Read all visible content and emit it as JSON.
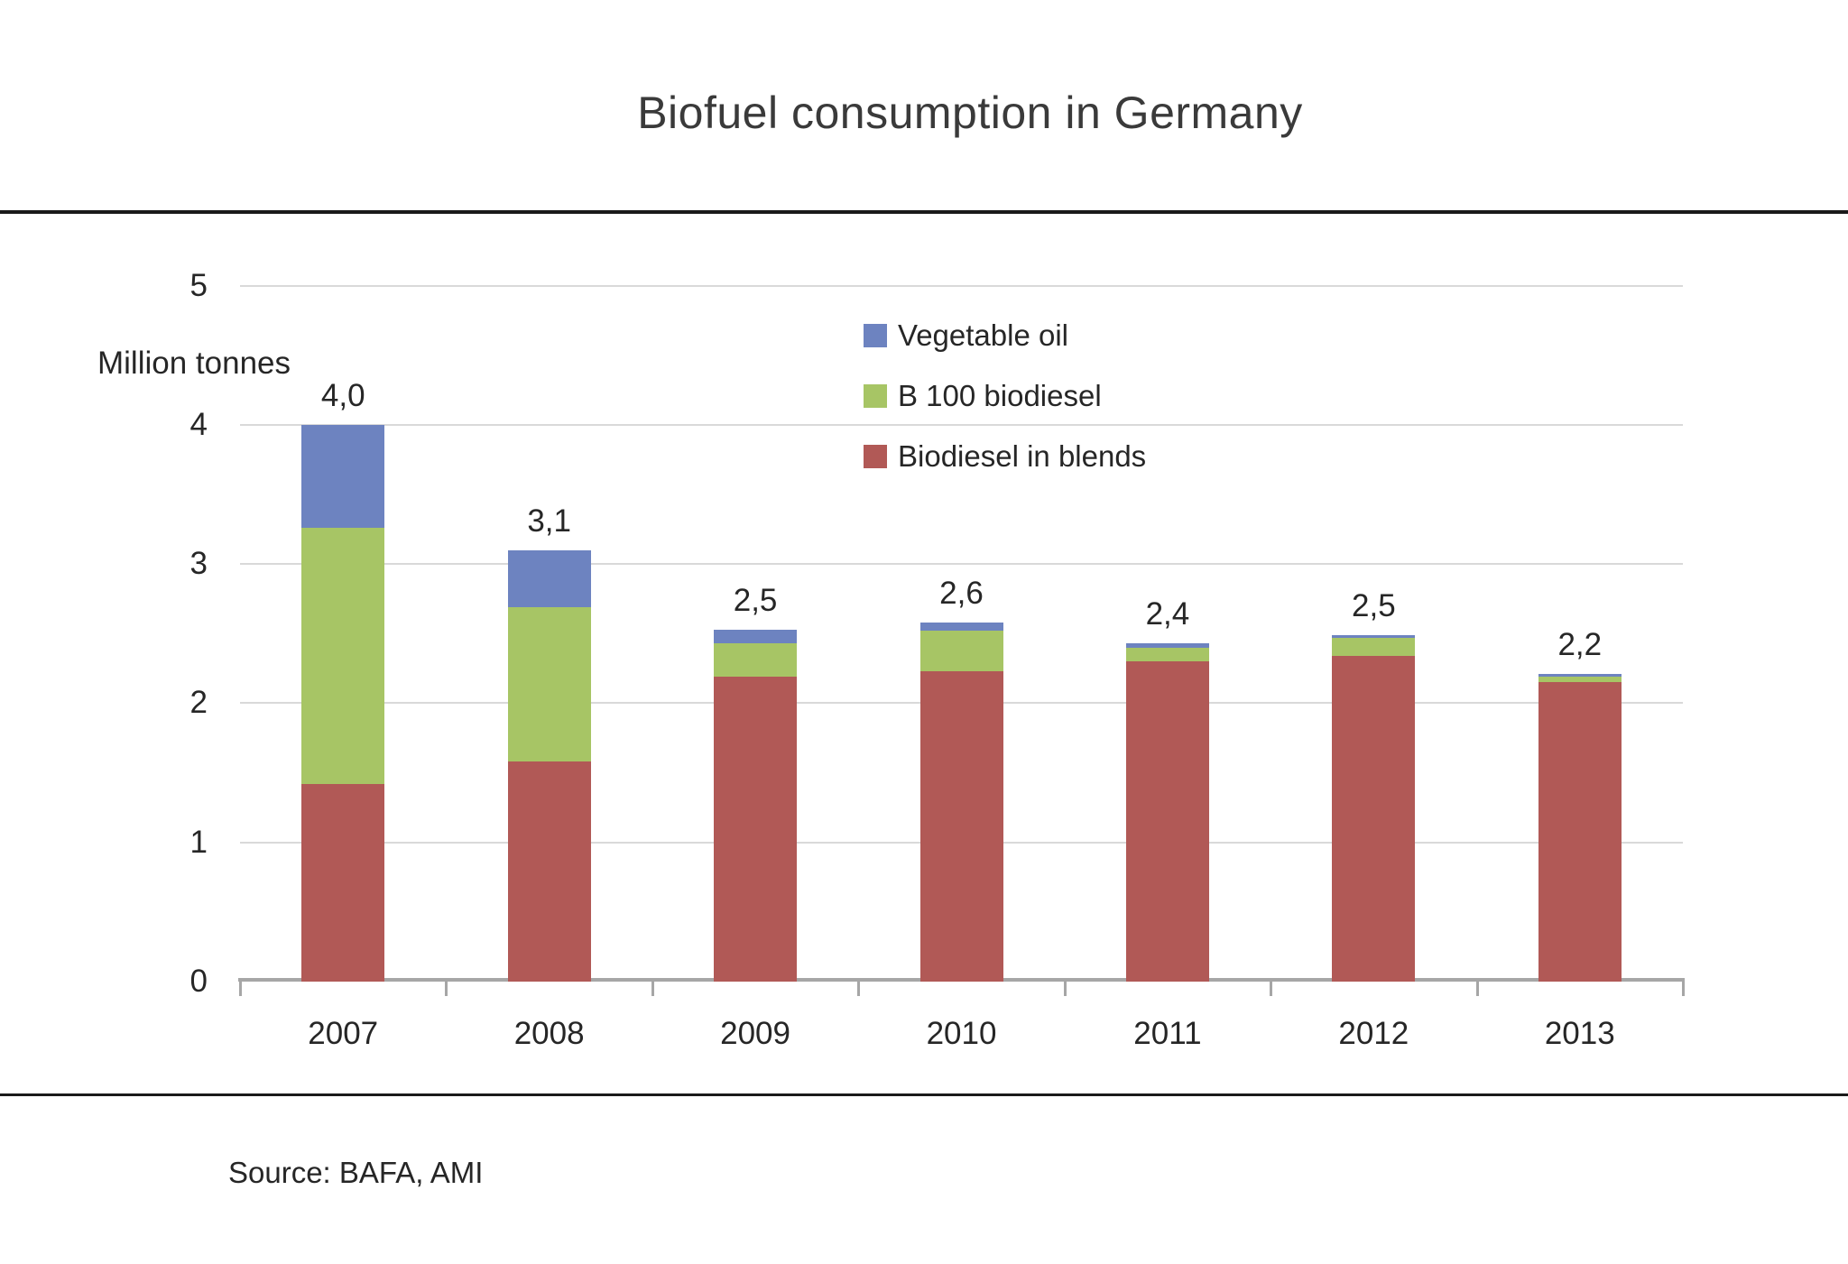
{
  "page": {
    "source_note": "Source: BAFA, AMI"
  },
  "chart_data": {
    "type": "bar",
    "stacked": true,
    "title": "Biofuel consumption in Germany",
    "ylabel": "Million tonnes",
    "ylim": [
      0,
      5
    ],
    "yticks": [
      0,
      1,
      2,
      3,
      4,
      5
    ],
    "grid": true,
    "legend_position": "inside-top-right",
    "legend_order_top_to_bottom": [
      "Vegetable oil",
      "B 100 biodiesel",
      "Biodiesel in blends"
    ],
    "categories": [
      "2007",
      "2008",
      "2009",
      "2010",
      "2011",
      "2012",
      "2013"
    ],
    "series": [
      {
        "name": "Biodiesel in blends",
        "color": "#b15956",
        "values": [
          1.42,
          1.58,
          2.19,
          2.23,
          2.3,
          2.34,
          2.15
        ]
      },
      {
        "name": "B 100 biodiesel",
        "color": "#a7c565",
        "values": [
          1.84,
          1.11,
          0.24,
          0.29,
          0.1,
          0.13,
          0.04
        ]
      },
      {
        "name": "Vegetable oil",
        "color": "#6d83c0",
        "values": [
          0.74,
          0.41,
          0.1,
          0.06,
          0.03,
          0.02,
          0.02
        ]
      }
    ],
    "total_labels": [
      "4,0",
      "3,1",
      "2,5",
      "2,6",
      "2,4",
      "2,5",
      "2,2"
    ],
    "colors": {
      "gridline": "#d9d9d9",
      "axis": "#a6a6a6",
      "text": "#262626",
      "title": "#3a3a3a",
      "rule": "#1a1a1a"
    }
  }
}
